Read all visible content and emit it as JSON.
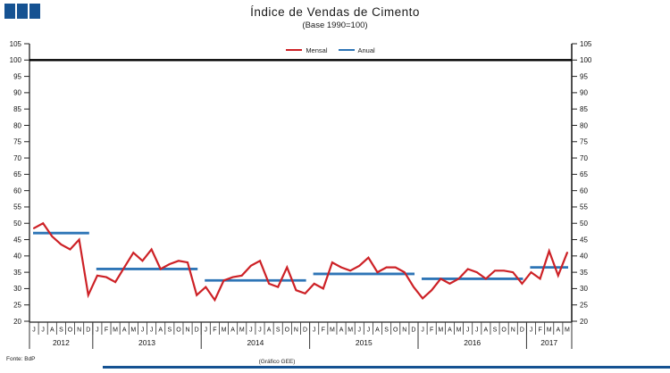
{
  "title": "Índice de Vendas de Cimento",
  "subtitle": "(Base 1990=100)",
  "legend": [
    {
      "label": "Mensal",
      "color": "#cd2126"
    },
    {
      "label": "Anual",
      "color": "#2e75b6"
    }
  ],
  "footer": {
    "source": "Fonte: BdP",
    "credit": "(Gráfico GEE)"
  },
  "colors": {
    "monthly_line": "#cd2126",
    "annual_line": "#2e75b6",
    "reference_line": "#000000",
    "axis": "#222222",
    "brand_blue": "#155292"
  },
  "chart_data": {
    "type": "line",
    "title": "Índice de Vendas de Cimento",
    "subtitle": "(Base 1990=100)",
    "xlabel": "",
    "ylabel": "",
    "ylim": [
      20,
      105
    ],
    "ytick_step": 5,
    "reference_line": 100,
    "grid": false,
    "legend_position": "top-center",
    "years": [
      {
        "label": "2012",
        "months": [
          "J",
          "J",
          "A",
          "S",
          "O",
          "N",
          "D"
        ]
      },
      {
        "label": "2013",
        "months": [
          "J",
          "F",
          "M",
          "A",
          "M",
          "J",
          "J",
          "A",
          "S",
          "O",
          "N",
          "D"
        ]
      },
      {
        "label": "2014",
        "months": [
          "J",
          "F",
          "M",
          "A",
          "M",
          "J",
          "J",
          "A",
          "S",
          "O",
          "N",
          "D"
        ]
      },
      {
        "label": "2015",
        "months": [
          "J",
          "F",
          "M",
          "A",
          "M",
          "J",
          "J",
          "A",
          "S",
          "O",
          "N",
          "D"
        ]
      },
      {
        "label": "2016",
        "months": [
          "J",
          "F",
          "M",
          "A",
          "M",
          "J",
          "J",
          "A",
          "S",
          "O",
          "N",
          "D"
        ]
      },
      {
        "label": "2017",
        "months": [
          "J",
          "F",
          "M",
          "A",
          "M"
        ]
      }
    ],
    "series": [
      {
        "name": "Mensal",
        "color": "#cd2126",
        "values": [
          48.5,
          50,
          46,
          43.5,
          42,
          45,
          28,
          34,
          33.5,
          32,
          36.5,
          41,
          38.5,
          42,
          36,
          37.5,
          38.5,
          38,
          28,
          30.5,
          26.5,
          32.5,
          33.5,
          34,
          37,
          38.5,
          31.5,
          30.5,
          36.5,
          29.5,
          28.5,
          31.5,
          30,
          38,
          36.5,
          35.5,
          37,
          39.5,
          35,
          36.5,
          36.5,
          35,
          30.5,
          27,
          29.5,
          33,
          31.5,
          33,
          36,
          35,
          33,
          35.5,
          35.5,
          35,
          31.5,
          35,
          33,
          41.5,
          34,
          41
        ]
      },
      {
        "name": "Anual",
        "color": "#2e75b6",
        "per_year_values": [
          47,
          36,
          32.5,
          34.5,
          33,
          36.5
        ]
      }
    ]
  }
}
